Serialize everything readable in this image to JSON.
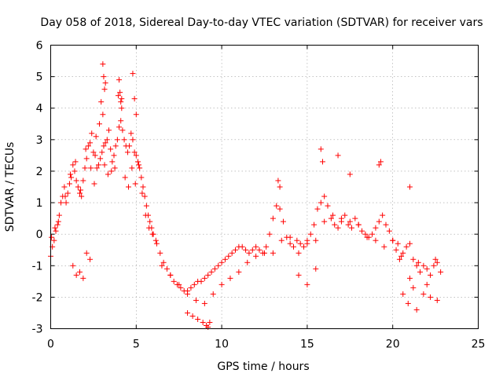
{
  "chart_data": {
    "type": "scatter",
    "title": "Day 058 of 2018, Sidereal Day-to-day VTEC variation (SDTVAR) for receiver vars",
    "xlabel": "GPS time / hours",
    "ylabel": "SDTVAR / TECUs",
    "xlim": [
      0,
      25
    ],
    "ylim": [
      -3,
      6
    ],
    "xticks": [
      "0",
      "5",
      "10",
      "15",
      "20",
      "25"
    ],
    "yticks": [
      "-3",
      "-2",
      "-1",
      "0",
      "1",
      "2",
      "3",
      "4",
      "5",
      "6"
    ],
    "grid": true,
    "marker": "+",
    "color": "#ff0000",
    "series": [
      {
        "name": "SDTVAR",
        "x": [
          0.0,
          0.1,
          0.2,
          0.3,
          0.4,
          0.5,
          0.6,
          0.7,
          0.8,
          0.9,
          1.0,
          1.1,
          1.2,
          1.3,
          1.4,
          1.5,
          1.6,
          1.7,
          1.8,
          1.9,
          2.0,
          2.1,
          2.2,
          2.3,
          2.4,
          2.5,
          2.6,
          2.7,
          2.8,
          2.9,
          3.0,
          3.1,
          3.2,
          3.3,
          3.4,
          3.5,
          3.6,
          3.7,
          3.8,
          3.9,
          4.0,
          4.1,
          4.2,
          4.3,
          4.4,
          4.5,
          4.6,
          4.7,
          4.8,
          4.9,
          5.0,
          5.1,
          5.2,
          5.3,
          5.4,
          5.5,
          5.6,
          5.7,
          5.8,
          5.9,
          6.0,
          6.2,
          6.4,
          6.6,
          6.8,
          7.0,
          7.2,
          7.4,
          7.6,
          7.8,
          8.0,
          8.2,
          8.4,
          8.6,
          8.8,
          9.0,
          9.2,
          9.4,
          9.6,
          9.8,
          10.0,
          10.2,
          10.4,
          10.6,
          10.8,
          11.0,
          11.2,
          11.4,
          11.6,
          11.8,
          12.0,
          12.2,
          12.4,
          12.6,
          12.8,
          13.0,
          13.2,
          13.4,
          13.6,
          13.8,
          14.0,
          14.2,
          14.4,
          14.6,
          14.8,
          15.0,
          15.2,
          15.4,
          15.6,
          15.8,
          16.0,
          16.2,
          16.4,
          16.6,
          16.8,
          17.0,
          17.2,
          17.4,
          17.6,
          17.8,
          18.0,
          18.2,
          18.4,
          18.6,
          18.8,
          19.0,
          19.2,
          19.4,
          19.6,
          19.8,
          20.0,
          20.2,
          20.4,
          20.6,
          20.8,
          21.0,
          21.2,
          21.4,
          21.6,
          21.8,
          22.0,
          22.2,
          22.4,
          22.6,
          22.8,
          0.05,
          0.25,
          0.45,
          0.85,
          1.15,
          1.45,
          1.75,
          2.05,
          2.35,
          2.55,
          2.65,
          2.85,
          2.95,
          3.05,
          3.15,
          3.35,
          3.55,
          3.75,
          3.95,
          4.15,
          4.35,
          4.55,
          4.75,
          4.95,
          5.15,
          5.35,
          5.55,
          5.75,
          5.95,
          6.15,
          6.5,
          7.0,
          7.5,
          8.0,
          8.5,
          9.0,
          9.5,
          10.0,
          10.5,
          11.0,
          11.5,
          12.0,
          12.5,
          13.0,
          13.5,
          14.0,
          14.5,
          15.0,
          15.5,
          16.0,
          16.5,
          17.0,
          17.5,
          18.0,
          18.5,
          19.0,
          19.5,
          20.0,
          20.5,
          21.0,
          21.5,
          22.0,
          22.5,
          3.05,
          3.1,
          3.15,
          3.2,
          4.0,
          4.05,
          4.1,
          4.15,
          4.8,
          4.9,
          5.0,
          8.0,
          8.3,
          8.6,
          8.9,
          9.1,
          9.2,
          9.3,
          13.3,
          13.4,
          15.8,
          15.9,
          16.8,
          17.5,
          19.2,
          19.3,
          21.0,
          21.4,
          21.8,
          22.2,
          22.6,
          14.5,
          15.0,
          15.5,
          20.3,
          20.6,
          20.9,
          21.2,
          1.3,
          1.5,
          1.7,
          1.9,
          2.1,
          2.3
        ],
        "y": [
          -0.7,
          -0.4,
          -0.2,
          0.1,
          0.3,
          0.6,
          1.0,
          1.2,
          1.5,
          1.0,
          1.3,
          1.6,
          1.8,
          2.2,
          2.0,
          1.7,
          1.5,
          1.3,
          1.2,
          1.7,
          2.1,
          2.4,
          2.8,
          2.9,
          3.2,
          2.6,
          2.5,
          2.1,
          2.2,
          2.4,
          2.6,
          2.8,
          2.9,
          3.0,
          3.3,
          2.7,
          2.3,
          2.5,
          2.8,
          3.0,
          3.4,
          3.6,
          3.3,
          3.0,
          2.8,
          2.6,
          2.8,
          3.2,
          3.0,
          2.6,
          2.5,
          2.3,
          2.1,
          1.8,
          1.5,
          1.2,
          0.9,
          0.6,
          0.4,
          0.2,
          0.0,
          -0.3,
          -0.6,
          -0.9,
          -1.1,
          -1.3,
          -1.5,
          -1.6,
          -1.7,
          -1.8,
          -1.8,
          -1.7,
          -1.6,
          -1.5,
          -1.5,
          -1.4,
          -1.3,
          -1.2,
          -1.1,
          -1.0,
          -0.9,
          -0.8,
          -0.7,
          -0.6,
          -0.5,
          -0.4,
          -0.4,
          -0.5,
          -0.6,
          -0.5,
          -0.4,
          -0.5,
          -0.6,
          -0.4,
          0.0,
          0.5,
          0.9,
          0.8,
          0.4,
          -0.1,
          -0.3,
          -0.4,
          -0.2,
          -0.3,
          -0.4,
          -0.2,
          0.0,
          0.3,
          0.8,
          1.0,
          1.2,
          0.9,
          0.5,
          0.3,
          0.2,
          0.4,
          0.6,
          0.3,
          0.2,
          0.5,
          0.3,
          0.1,
          0.0,
          -0.1,
          0.0,
          0.2,
          0.4,
          0.6,
          0.3,
          0.1,
          -0.2,
          -0.5,
          -0.8,
          -0.6,
          -0.4,
          -0.3,
          -0.8,
          -1.0,
          -1.2,
          -1.0,
          -1.1,
          -1.3,
          -1.0,
          -0.9,
          -1.2,
          -0.1,
          0.2,
          0.4,
          1.2,
          1.9,
          2.3,
          1.4,
          2.7,
          2.1,
          1.6,
          3.1,
          3.5,
          4.2,
          3.8,
          2.2,
          1.9,
          2.0,
          2.1,
          4.4,
          4.3,
          1.8,
          1.5,
          2.1,
          1.6,
          2.2,
          1.3,
          0.6,
          0.2,
          0.0,
          -0.2,
          -1.0,
          -1.3,
          -1.6,
          -1.9,
          -2.1,
          -2.2,
          -1.9,
          -1.6,
          -1.4,
          -1.2,
          -0.9,
          -0.7,
          -0.6,
          -0.6,
          -0.2,
          -0.1,
          -0.6,
          -0.3,
          -0.2,
          0.4,
          0.6,
          0.5,
          0.4,
          0.3,
          -0.1,
          -0.2,
          -0.4,
          -0.2,
          -0.7,
          -1.4,
          -0.9,
          -1.6,
          -0.8,
          5.4,
          5.0,
          4.6,
          4.8,
          4.9,
          4.5,
          4.2,
          4.0,
          5.1,
          4.3,
          3.8,
          -2.5,
          -2.6,
          -2.7,
          -2.8,
          -2.9,
          -2.95,
          -2.8,
          1.7,
          1.5,
          2.7,
          2.3,
          2.5,
          1.9,
          2.2,
          2.3,
          1.5,
          -2.4,
          -1.9,
          -2.0,
          -2.1,
          -1.3,
          -1.6,
          -1.1,
          -0.3,
          -1.9,
          -2.2,
          -1.7,
          -1.0,
          -1.3,
          -1.2,
          -1.4,
          -0.6,
          -0.8
        ]
      }
    ]
  }
}
